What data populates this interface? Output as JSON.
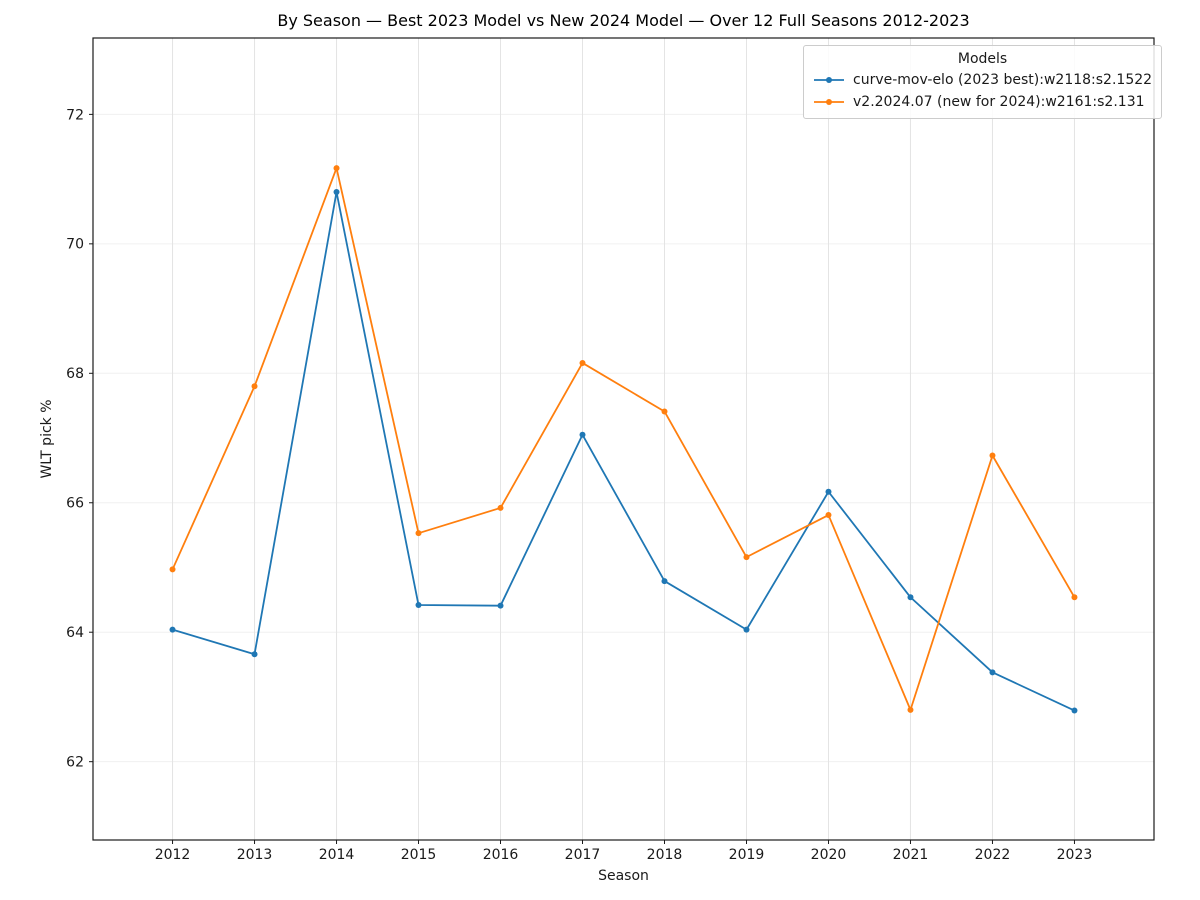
{
  "chart_data": {
    "type": "line",
    "title": "By Season — Best 2023 Model vs New 2024 Model — Over 12 Full Seasons 2012-2023",
    "xlabel": "Season",
    "ylabel": "WLT pick %",
    "x": [
      2012,
      2013,
      2014,
      2015,
      2016,
      2017,
      2018,
      2019,
      2020,
      2021,
      2022,
      2023
    ],
    "series": [
      {
        "name": "curve-mov-elo (2023 best):w2118:s2.1522",
        "color": "#1f77b4",
        "values": [
          64.04,
          63.66,
          70.8,
          64.42,
          64.41,
          67.05,
          64.79,
          64.04,
          66.17,
          64.54,
          63.38,
          62.79
        ]
      },
      {
        "name": "v2.2024.07 (new for 2024):w2161:s2.131",
        "color": "#ff7f0e",
        "values": [
          64.97,
          67.8,
          71.17,
          65.53,
          65.92,
          68.16,
          67.41,
          65.16,
          65.81,
          62.8,
          66.73,
          64.54
        ]
      }
    ],
    "legend": {
      "title": "Models",
      "position": "upper right"
    },
    "xlim": [
      2011.03,
      2023.97
    ],
    "ylim": [
      60.79,
      73.18
    ],
    "yticks": [
      62,
      64,
      66,
      68,
      70,
      72
    ],
    "grid": true
  }
}
